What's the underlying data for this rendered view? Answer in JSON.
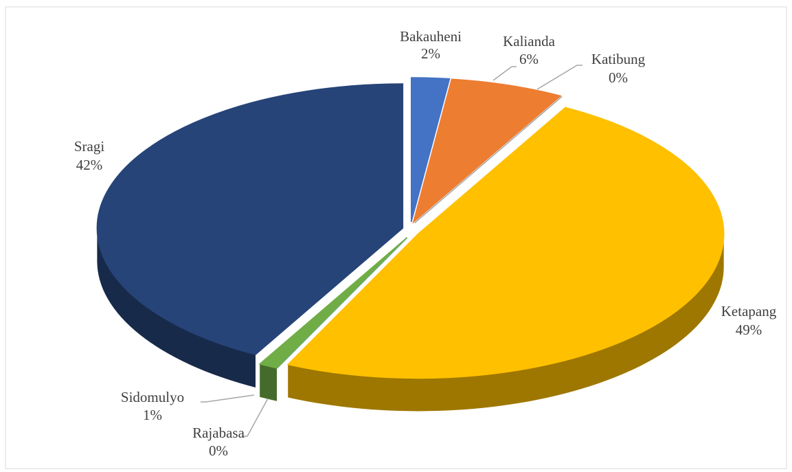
{
  "chart_data": {
    "type": "pie",
    "categories": [
      "Bakauheni",
      "Kalianda",
      "Katibung",
      "Ketapang",
      "Rajabasa",
      "Sidomulyo",
      "Sragi"
    ],
    "values": [
      2,
      6,
      0,
      49,
      0,
      1,
      42
    ],
    "value_labels": [
      "2%",
      "6%",
      "0%",
      "49%",
      "0%",
      "1%",
      "42%"
    ],
    "colors": [
      "#4472c4",
      "#ed7d31",
      "#a5a5a5",
      "#ffc000",
      "#5b9bd5",
      "#70ad47",
      "#264478"
    ]
  }
}
